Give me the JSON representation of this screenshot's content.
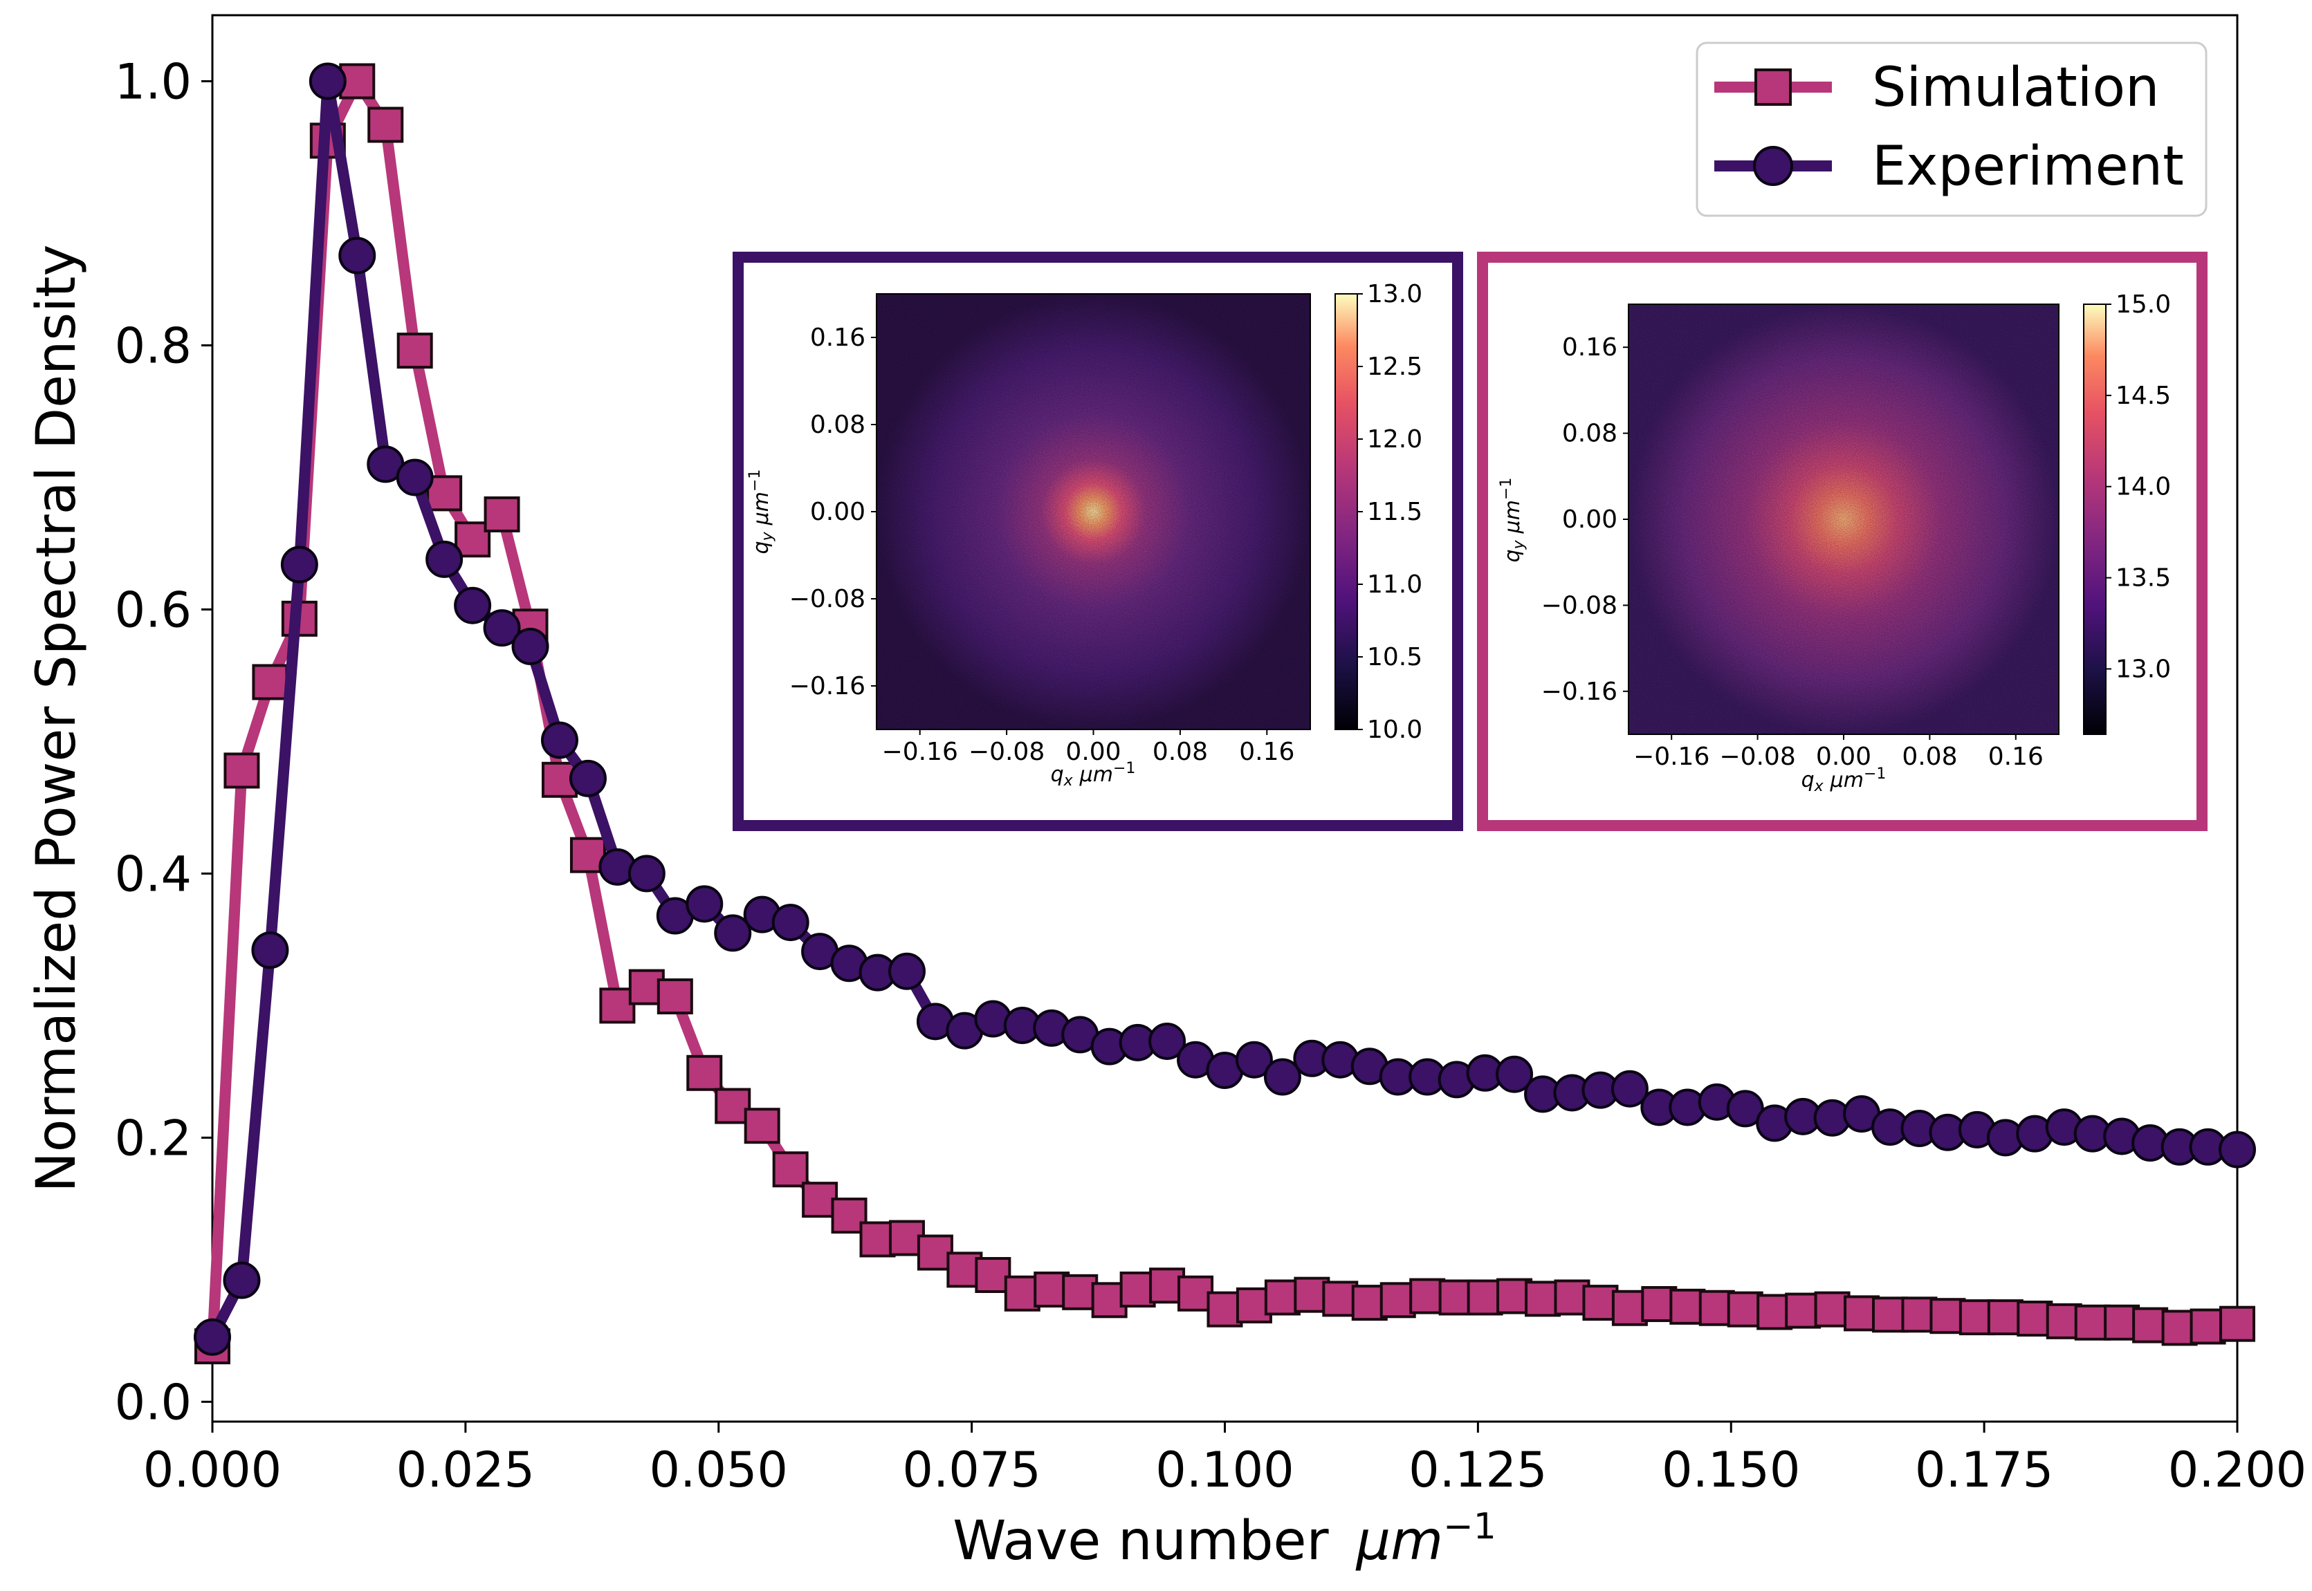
{
  "chart_data": {
    "type": "line",
    "title": "",
    "xlabel": "Wave number",
    "xlabel_unit": "μm",
    "xlabel_unit_exp": "−1",
    "ylabel": "Normalized Power Spectral Density",
    "xlim": [
      0.0,
      0.2
    ],
    "ylim": [
      -0.015,
      1.05
    ],
    "xticks": [
      0.0,
      0.025,
      0.05,
      0.075,
      0.1,
      0.125,
      0.15,
      0.175,
      0.2
    ],
    "xtick_labels": [
      "0.000",
      "0.025",
      "0.050",
      "0.075",
      "0.100",
      "0.125",
      "0.150",
      "0.175",
      "0.200"
    ],
    "yticks": [
      0.0,
      0.2,
      0.4,
      0.6,
      0.8,
      1.0
    ],
    "ytick_labels": [
      "0.0",
      "0.2",
      "0.4",
      "0.6",
      "0.8",
      "1.0"
    ],
    "legend_position": "top-right",
    "series": [
      {
        "name": "Simulation",
        "marker": "square",
        "color": "#b7377a",
        "x": [
          0.0,
          0.0029,
          0.0057,
          0.0086,
          0.0114,
          0.0143,
          0.0171,
          0.02,
          0.0229,
          0.0257,
          0.0286,
          0.0314,
          0.0343,
          0.0371,
          0.04,
          0.0429,
          0.0457,
          0.0486,
          0.0514,
          0.0543,
          0.0571,
          0.06,
          0.0629,
          0.0657,
          0.0686,
          0.0714,
          0.0743,
          0.0771,
          0.08,
          0.0829,
          0.0857,
          0.0886,
          0.0914,
          0.0943,
          0.0971,
          0.1,
          0.1029,
          0.1057,
          0.1086,
          0.1114,
          0.1143,
          0.1171,
          0.12,
          0.1229,
          0.1257,
          0.1286,
          0.1314,
          0.1343,
          0.1371,
          0.14,
          0.1429,
          0.1457,
          0.1486,
          0.1514,
          0.1543,
          0.1571,
          0.16,
          0.1629,
          0.1657,
          0.1686,
          0.1714,
          0.1743,
          0.1771,
          0.18,
          0.1829,
          0.1857,
          0.1886,
          0.1914,
          0.1943,
          0.1971,
          0.2
        ],
        "values": [
          0.042,
          0.478,
          0.545,
          0.593,
          0.955,
          1.0,
          0.967,
          0.796,
          0.688,
          0.653,
          0.672,
          0.587,
          0.471,
          0.414,
          0.3,
          0.314,
          0.307,
          0.249,
          0.224,
          0.209,
          0.176,
          0.153,
          0.141,
          0.123,
          0.124,
          0.113,
          0.1,
          0.096,
          0.082,
          0.085,
          0.083,
          0.077,
          0.085,
          0.088,
          0.082,
          0.07,
          0.073,
          0.079,
          0.081,
          0.078,
          0.075,
          0.077,
          0.08,
          0.079,
          0.079,
          0.08,
          0.078,
          0.079,
          0.075,
          0.071,
          0.074,
          0.072,
          0.071,
          0.07,
          0.068,
          0.069,
          0.07,
          0.067,
          0.066,
          0.066,
          0.065,
          0.064,
          0.064,
          0.063,
          0.061,
          0.06,
          0.06,
          0.058,
          0.056,
          0.057,
          0.059
        ]
      },
      {
        "name": "Experiment",
        "marker": "circle",
        "color": "#3b1265",
        "x": [
          0.0,
          0.0029,
          0.0057,
          0.0086,
          0.0114,
          0.0143,
          0.0171,
          0.02,
          0.0229,
          0.0257,
          0.0286,
          0.0314,
          0.0343,
          0.0371,
          0.04,
          0.0429,
          0.0457,
          0.0486,
          0.0514,
          0.0543,
          0.0571,
          0.06,
          0.0629,
          0.0657,
          0.0686,
          0.0714,
          0.0743,
          0.0771,
          0.08,
          0.0829,
          0.0857,
          0.0886,
          0.0914,
          0.0943,
          0.0971,
          0.1,
          0.1029,
          0.1057,
          0.1086,
          0.1114,
          0.1143,
          0.1171,
          0.12,
          0.1229,
          0.1257,
          0.1286,
          0.1314,
          0.1343,
          0.1371,
          0.14,
          0.1429,
          0.1457,
          0.1486,
          0.1514,
          0.1543,
          0.1571,
          0.16,
          0.1629,
          0.1657,
          0.1686,
          0.1714,
          0.1743,
          0.1771,
          0.18,
          0.1829,
          0.1857,
          0.1886,
          0.1914,
          0.1943,
          0.1971,
          0.2
        ],
        "values": [
          0.049,
          0.092,
          0.342,
          0.634,
          1.0,
          0.868,
          0.71,
          0.7,
          0.638,
          0.603,
          0.586,
          0.572,
          0.501,
          0.472,
          0.405,
          0.4,
          0.368,
          0.377,
          0.355,
          0.369,
          0.363,
          0.341,
          0.332,
          0.325,
          0.326,
          0.288,
          0.281,
          0.29,
          0.285,
          0.283,
          0.278,
          0.269,
          0.272,
          0.273,
          0.259,
          0.251,
          0.259,
          0.246,
          0.26,
          0.259,
          0.254,
          0.246,
          0.246,
          0.244,
          0.249,
          0.248,
          0.233,
          0.234,
          0.236,
          0.237,
          0.223,
          0.223,
          0.227,
          0.222,
          0.211,
          0.216,
          0.215,
          0.218,
          0.208,
          0.207,
          0.204,
          0.206,
          0.2,
          0.203,
          0.208,
          0.203,
          0.201,
          0.196,
          0.193,
          0.193,
          0.191
        ]
      }
    ],
    "insets": [
      {
        "name": "experiment-psd-map",
        "frame_color": "#3b1265",
        "spot_size": "small",
        "xlabel": "q",
        "xlabel_sub": "x",
        "ylabel": "q",
        "ylabel_sub": "y",
        "axis_unit": "μm",
        "axis_unit_exp": "−1",
        "xtick_labels": [
          "−0.16",
          "−0.08",
          "0.00",
          "0.08",
          "0.16"
        ],
        "ytick_labels": [
          "0.16",
          "0.08",
          "0.00",
          "−0.08",
          "−0.16"
        ],
        "colorbar_ticks": [
          "13.0",
          "12.5",
          "12.0",
          "11.5",
          "11.0",
          "10.5",
          "10.0"
        ]
      },
      {
        "name": "simulation-psd-map",
        "frame_color": "#b7377a",
        "spot_size": "large",
        "xlabel": "q",
        "xlabel_sub": "x",
        "ylabel": "q",
        "ylabel_sub": "y",
        "axis_unit": "μm",
        "axis_unit_exp": "−1",
        "xtick_labels": [
          "−0.16",
          "−0.08",
          "0.00",
          "0.08",
          "0.16"
        ],
        "ytick_labels": [
          "0.16",
          "0.08",
          "0.00",
          "−0.08",
          "−0.16"
        ],
        "colorbar_ticks": [
          "15.0",
          "14.5",
          "14.0",
          "13.5",
          "13.0"
        ]
      }
    ]
  }
}
